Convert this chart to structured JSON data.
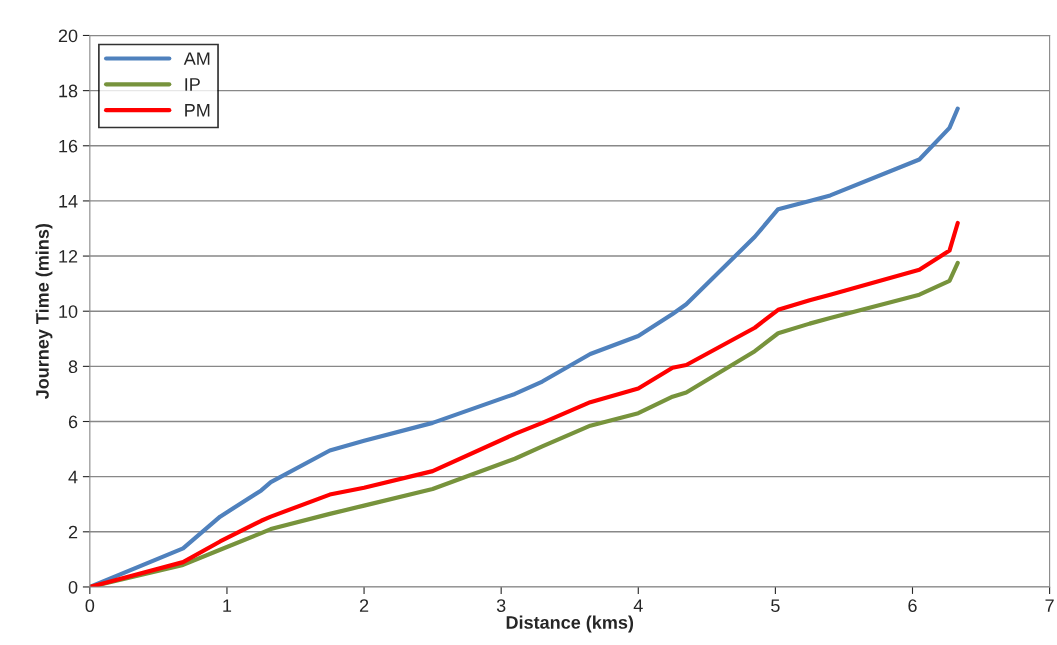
{
  "chart_data": {
    "type": "line",
    "xlabel": "Distance (kms)",
    "ylabel": "Journey Time (mins)",
    "x": [
      0,
      0.68,
      0.95,
      1.25,
      1.32,
      1.75,
      2.0,
      2.5,
      3.1,
      3.3,
      3.65,
      4.0,
      4.25,
      4.35,
      4.85,
      5.02,
      5.25,
      5.4,
      6.05,
      6.27,
      6.33
    ],
    "series": [
      {
        "name": "AM",
        "color": "#4f81bd",
        "values": [
          0,
          1.4,
          2.55,
          3.5,
          3.8,
          4.95,
          5.3,
          5.95,
          7.0,
          7.45,
          8.45,
          9.1,
          9.9,
          10.25,
          12.7,
          13.7,
          14.0,
          14.2,
          15.5,
          16.65,
          17.35
        ]
      },
      {
        "name": "IP",
        "color": "#77933c",
        "values": [
          0,
          0.8,
          1.35,
          1.95,
          2.1,
          2.65,
          2.95,
          3.55,
          4.65,
          5.1,
          5.85,
          6.3,
          6.9,
          7.05,
          8.55,
          9.2,
          9.55,
          9.75,
          10.6,
          11.1,
          11.75
        ]
      },
      {
        "name": "PM",
        "color": "#ff0000",
        "values": [
          0,
          0.9,
          1.65,
          2.4,
          2.55,
          3.35,
          3.6,
          4.2,
          5.55,
          5.95,
          6.7,
          7.2,
          7.95,
          8.05,
          9.4,
          10.05,
          10.4,
          10.6,
          11.5,
          12.2,
          13.2
        ]
      }
    ],
    "xlim": [
      0,
      7
    ],
    "xticks": [
      0,
      1,
      2,
      3,
      4,
      5,
      6,
      7
    ],
    "ylim": [
      0,
      20
    ],
    "yticks": [
      0,
      2,
      4,
      6,
      8,
      10,
      12,
      14,
      16,
      18,
      20
    ],
    "grid": "y",
    "legend": "top left"
  }
}
